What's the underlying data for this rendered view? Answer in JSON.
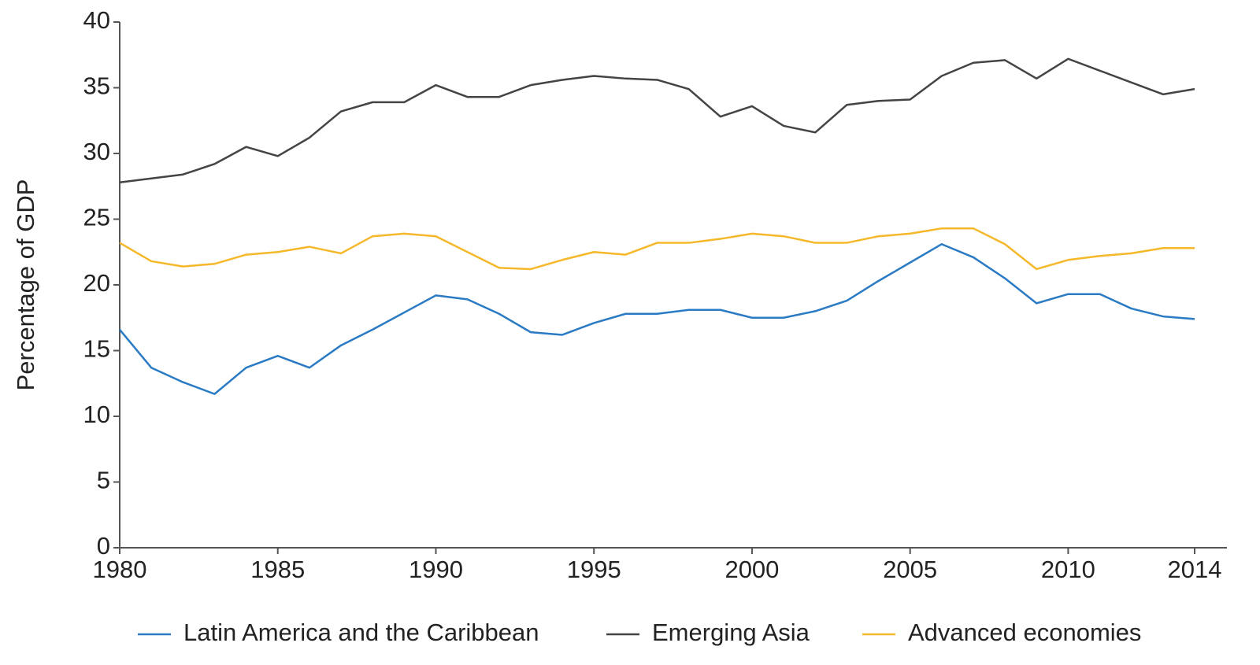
{
  "chart_data": {
    "type": "line",
    "y_label": "Percentage of GDP",
    "x": [
      1980,
      1981,
      1982,
      1983,
      1984,
      1985,
      1986,
      1987,
      1988,
      1989,
      1990,
      1991,
      1992,
      1993,
      1994,
      1995,
      1996,
      1997,
      1998,
      1999,
      2000,
      2001,
      2002,
      2003,
      2004,
      2005,
      2006,
      2007,
      2008,
      2009,
      2010,
      2011,
      2012,
      2013,
      2014
    ],
    "series": [
      {
        "name": "Latin America and the Caribbean",
        "color": "#2a7bc4",
        "values": [
          16.6,
          13.7,
          12.6,
          11.7,
          13.7,
          14.6,
          13.7,
          15.4,
          16.6,
          17.9,
          19.2,
          18.9,
          17.8,
          16.4,
          16.2,
          17.1,
          17.8,
          17.8,
          18.1,
          18.1,
          17.5,
          17.5,
          18.0,
          18.8,
          20.3,
          21.7,
          23.1,
          22.1,
          20.5,
          18.6,
          19.3,
          19.3,
          18.2,
          17.6,
          17.4
        ]
      },
      {
        "name": "Emerging Asia",
        "color": "#444444",
        "values": [
          27.8,
          28.1,
          28.4,
          29.2,
          30.5,
          29.8,
          31.2,
          33.2,
          33.9,
          33.9,
          35.2,
          34.3,
          34.3,
          35.2,
          35.6,
          35.9,
          35.7,
          35.6,
          34.9,
          32.8,
          33.6,
          32.1,
          31.6,
          33.7,
          34.0,
          34.1,
          35.9,
          36.9,
          37.1,
          35.7,
          37.2,
          36.3,
          35.4,
          34.5,
          34.9
        ]
      },
      {
        "name": "Advanced economies",
        "color": "#f5b82a",
        "values": [
          23.2,
          21.8,
          21.4,
          21.6,
          22.3,
          22.5,
          22.9,
          22.4,
          23.7,
          23.9,
          23.7,
          22.5,
          21.3,
          21.2,
          21.9,
          22.5,
          22.3,
          23.2,
          23.2,
          23.5,
          23.9,
          23.7,
          23.2,
          23.2,
          23.7,
          23.9,
          24.3,
          24.3,
          23.1,
          21.2,
          21.9,
          22.2,
          22.4,
          22.8,
          22.8
        ]
      }
    ],
    "xlim": [
      1980,
      2014
    ],
    "xticks": [
      1980,
      1985,
      1990,
      1995,
      2000,
      2005,
      2010,
      2014
    ],
    "ylim": [
      0,
      40
    ],
    "yticks": [
      0,
      5,
      10,
      15,
      20,
      25,
      30,
      35,
      40
    ],
    "legend": "bottom"
  }
}
